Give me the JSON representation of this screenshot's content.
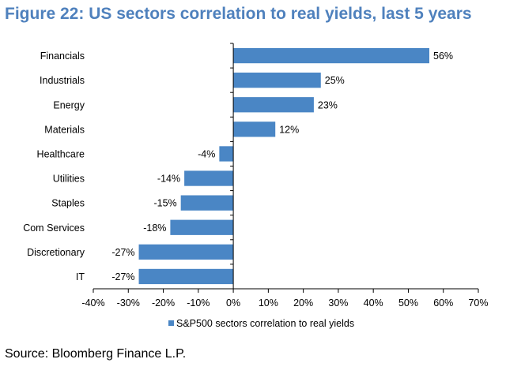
{
  "title": "Figure 22: US sectors correlation to real yields, last 5 years",
  "source": "Source: Bloomberg Finance L.P.",
  "chart_data": {
    "type": "bar",
    "orientation": "horizontal",
    "title": "Figure 22: US sectors correlation to real yields, last 5 years",
    "categories": [
      "Financials",
      "Industrials",
      "Energy",
      "Materials",
      "Healthcare",
      "Utilities",
      "Staples",
      "Com Services",
      "Discretionary",
      "IT"
    ],
    "series": [
      {
        "name": "S&P500 sectors correlation to real yields",
        "values": [
          56,
          25,
          23,
          12,
          -4,
          -14,
          -15,
          -18,
          -27,
          -27
        ],
        "labels": [
          "56%",
          "25%",
          "23%",
          "12%",
          "-4%",
          "-14%",
          "-15%",
          "-18%",
          "-27%",
          "-27%"
        ],
        "color": "#4a86c5"
      }
    ],
    "xlim": [
      -40,
      70
    ],
    "xticks": [
      "-40%",
      "-30%",
      "-20%",
      "-10%",
      "0%",
      "10%",
      "20%",
      "30%",
      "40%",
      "50%",
      "60%",
      "70%"
    ],
    "grid": false,
    "legend_position": "bottom"
  }
}
